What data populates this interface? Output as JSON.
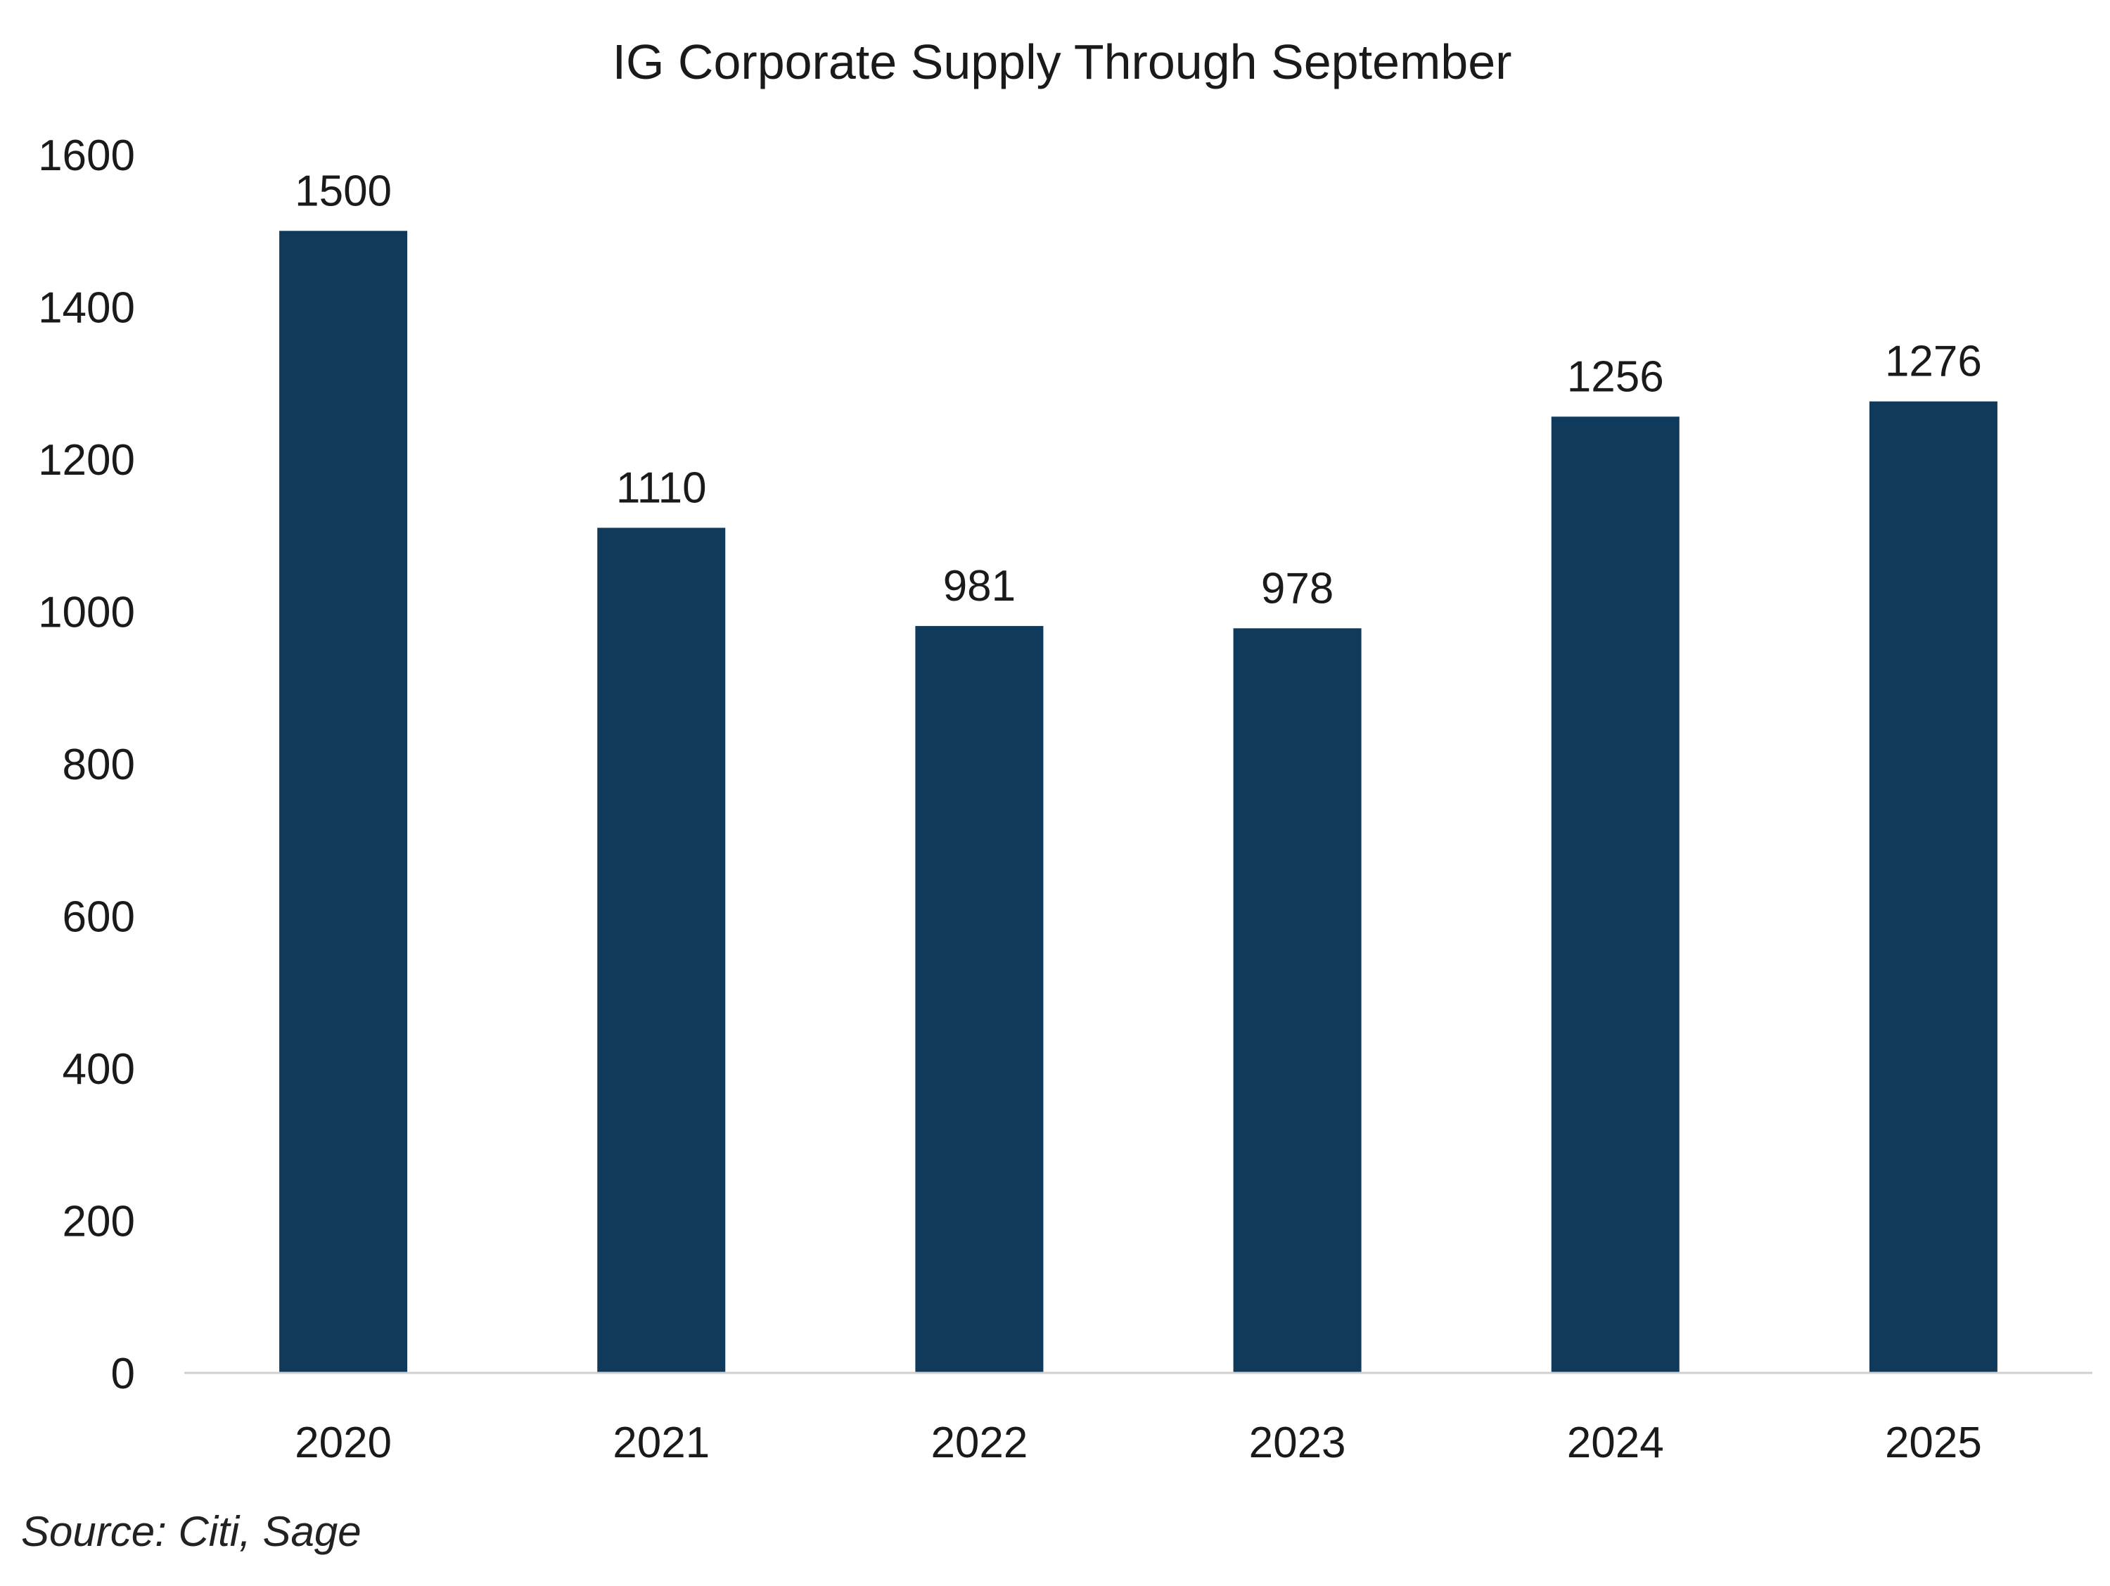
{
  "chart_data": {
    "type": "bar",
    "title": "IG Corporate Supply Through September",
    "categories": [
      "2020",
      "2021",
      "2022",
      "2023",
      "2024",
      "2025"
    ],
    "values": [
      1500,
      1110,
      981,
      978,
      1256,
      1276
    ],
    "data_labels": [
      "1500",
      "1110",
      "981",
      "978",
      "1256",
      "1276"
    ],
    "ylim": [
      0,
      1600
    ],
    "yticks": [
      0,
      200,
      400,
      600,
      800,
      1000,
      1200,
      1400,
      1600
    ],
    "xlabel": "",
    "ylabel": "",
    "grid": false,
    "legend": "none",
    "bar_color": "#103a5c",
    "axis_color": "#d0d0d0"
  },
  "source": "Source: Citi, Sage"
}
